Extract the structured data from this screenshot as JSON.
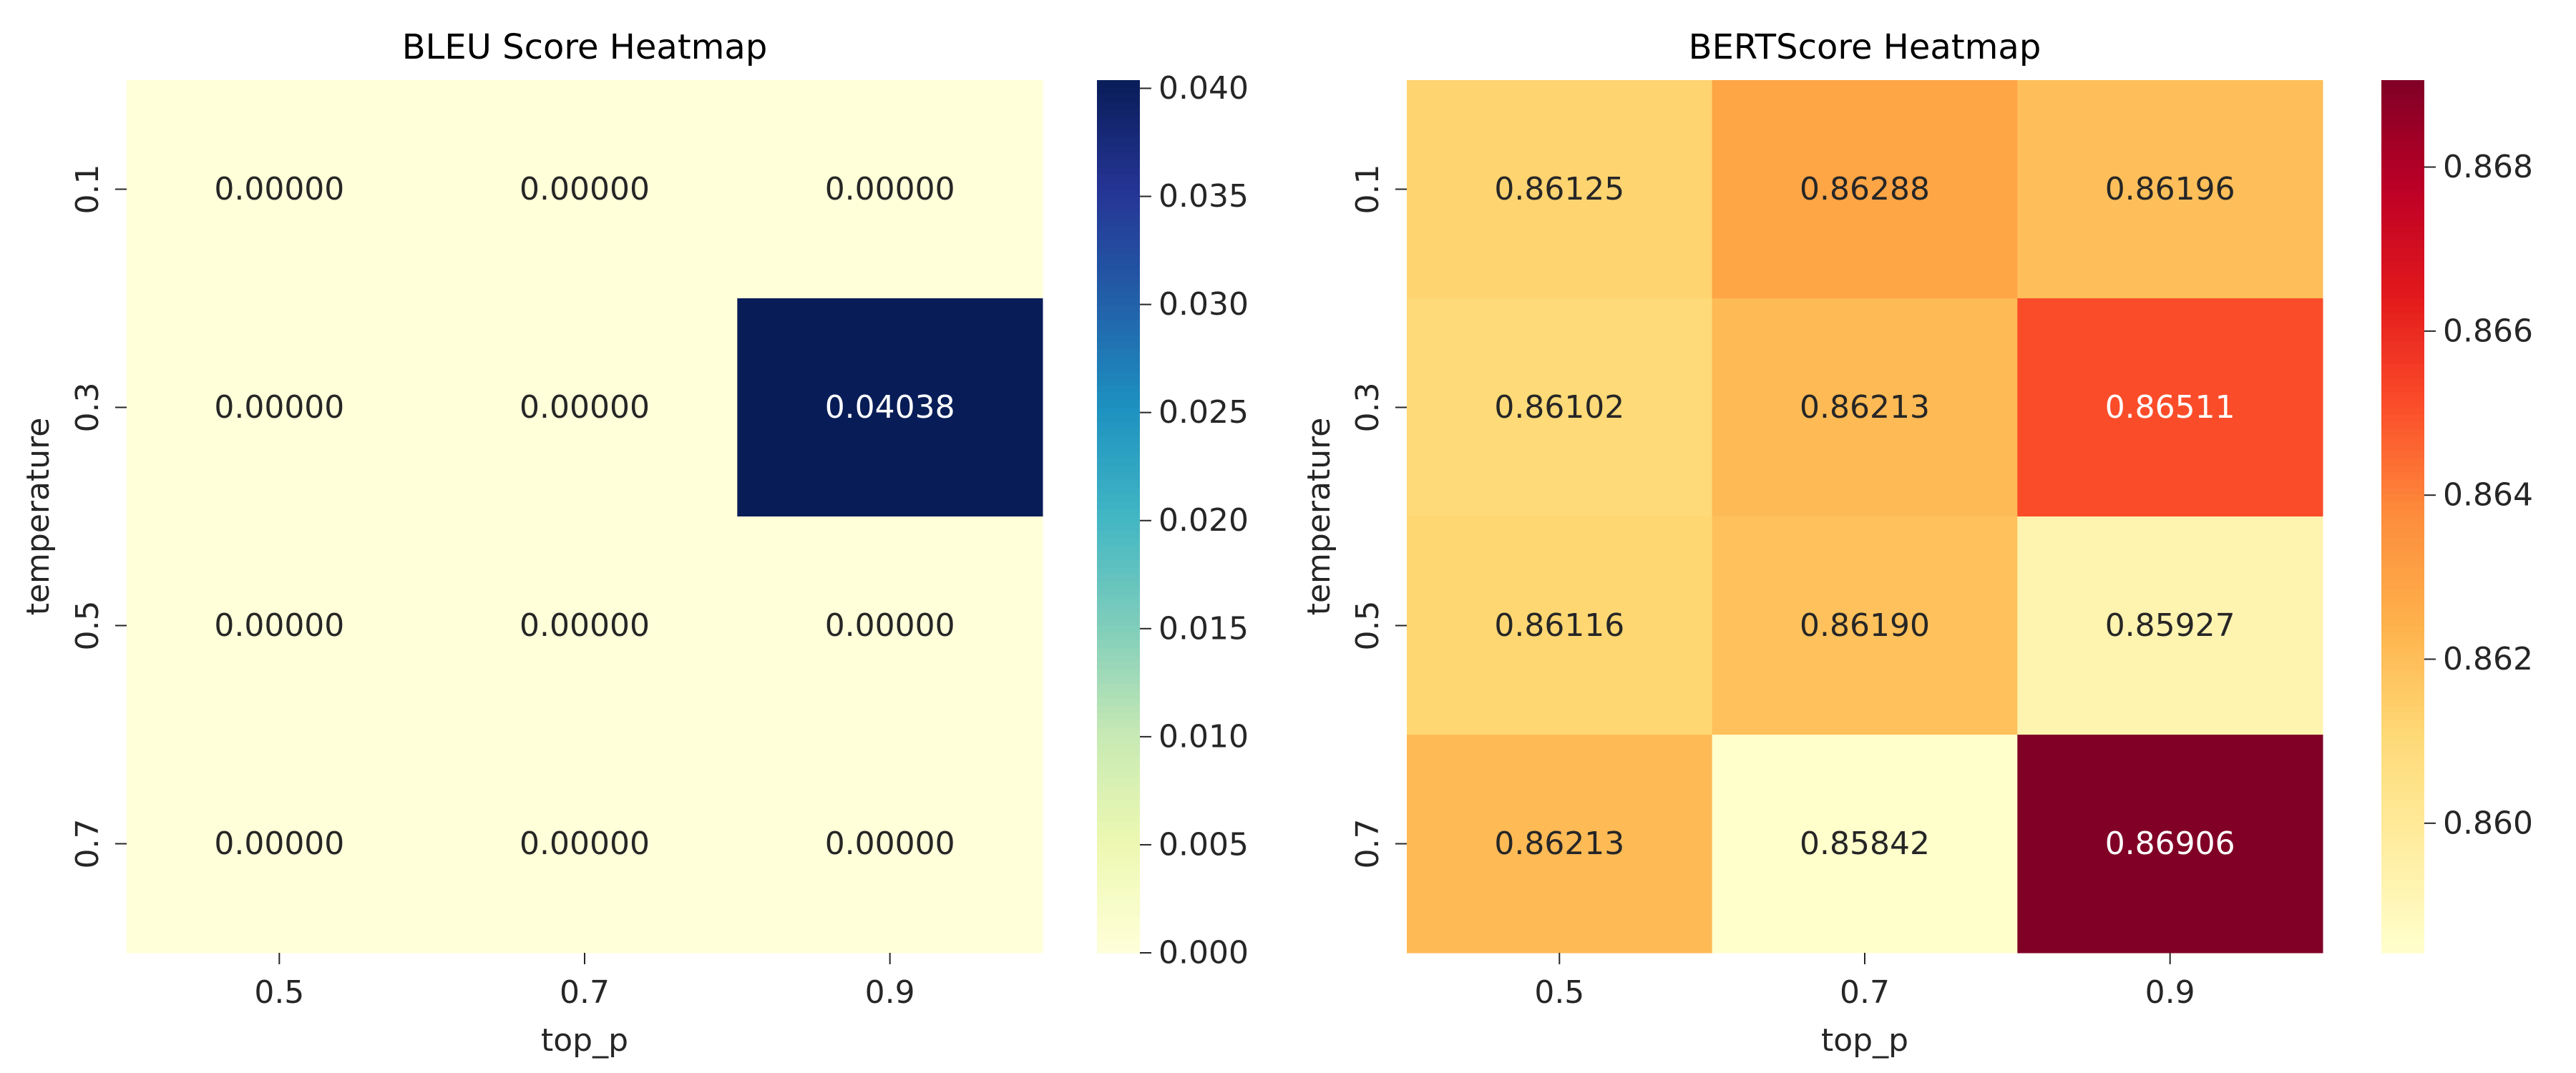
{
  "colors": {
    "bleu_colormap": "YlGnBu",
    "bertscore_colormap": "YlOrRd",
    "text_dark": "#262626",
    "text_light": "#ffffff"
  },
  "chart_data": [
    {
      "type": "heatmap",
      "title": "BLEU Score Heatmap",
      "xlabel": "top_p",
      "ylabel": "temperature",
      "x": [
        "0.5",
        "0.7",
        "0.9"
      ],
      "y": [
        "0.1",
        "0.3",
        "0.5",
        "0.7"
      ],
      "values": [
        [
          0.0,
          0.0,
          0.0
        ],
        [
          0.0,
          0.0,
          0.04038
        ],
        [
          0.0,
          0.0,
          0.0
        ],
        [
          0.0,
          0.0,
          0.0
        ]
      ],
      "cell_labels": [
        [
          "0.00000",
          "0.00000",
          "0.00000"
        ],
        [
          "0.00000",
          "0.00000",
          "0.04038"
        ],
        [
          "0.00000",
          "0.00000",
          "0.00000"
        ],
        [
          "0.00000",
          "0.00000",
          "0.00000"
        ]
      ],
      "colorbar": {
        "colormap": "YlGnBu",
        "range": [
          0.0,
          0.04038
        ],
        "ticks": [
          0.0,
          0.005,
          0.01,
          0.015,
          0.02,
          0.025,
          0.03,
          0.035,
          0.04
        ],
        "tick_labels": [
          "0.000",
          "0.005",
          "0.010",
          "0.015",
          "0.020",
          "0.025",
          "0.030",
          "0.035",
          "0.040"
        ]
      }
    },
    {
      "type": "heatmap",
      "title": "BERTScore Heatmap",
      "xlabel": "top_p",
      "ylabel": "temperature",
      "x": [
        "0.5",
        "0.7",
        "0.9"
      ],
      "y": [
        "0.1",
        "0.3",
        "0.5",
        "0.7"
      ],
      "values": [
        [
          0.86125,
          0.86288,
          0.86196
        ],
        [
          0.86102,
          0.86213,
          0.86511
        ],
        [
          0.86116,
          0.8619,
          0.85927
        ],
        [
          0.86213,
          0.85842,
          0.86906
        ]
      ],
      "cell_labels": [
        [
          "0.86125",
          "0.86288",
          "0.86196"
        ],
        [
          "0.86102",
          "0.86213",
          "0.86511"
        ],
        [
          "0.86116",
          "0.86190",
          "0.85927"
        ],
        [
          "0.86213",
          "0.85842",
          "0.86906"
        ]
      ],
      "colorbar": {
        "colormap": "YlOrRd",
        "range": [
          0.85842,
          0.86906
        ],
        "ticks": [
          0.86,
          0.862,
          0.864,
          0.866,
          0.868
        ],
        "tick_labels": [
          "0.860",
          "0.862",
          "0.864",
          "0.866",
          "0.868"
        ]
      }
    }
  ]
}
